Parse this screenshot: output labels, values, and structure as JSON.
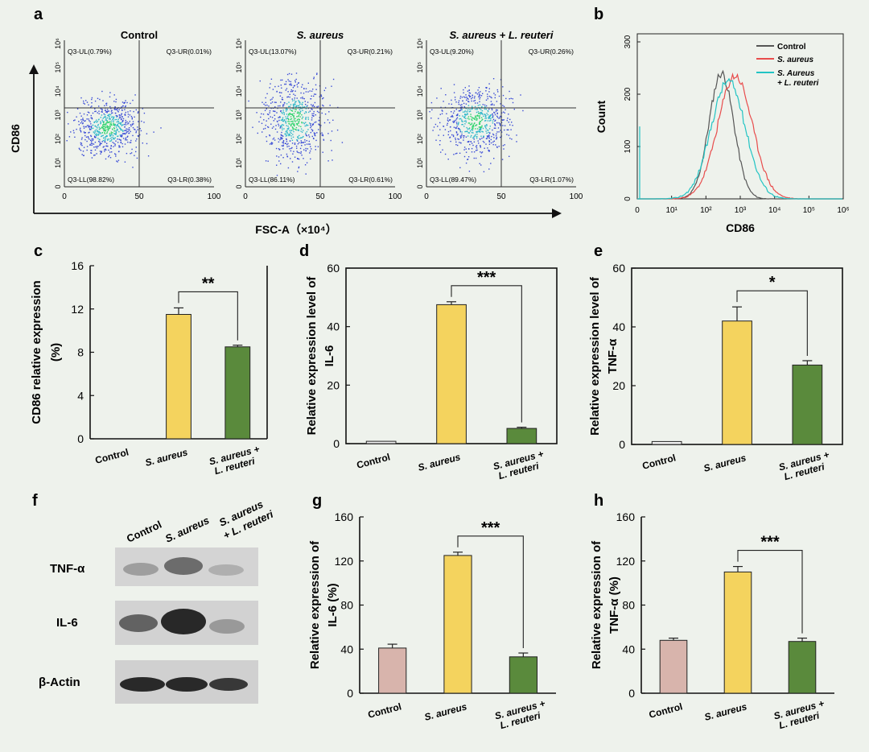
{
  "colors": {
    "background": "#eef2ec",
    "control_bar": "#d8b4ac",
    "aureus_bar": "#f4d35e",
    "reuteri_bar": "#5a8a3c",
    "hist_control": "#555555",
    "hist_aureus": "#e84c4c",
    "hist_reuteri": "#22c4c4",
    "dot_core": "#2bd36b",
    "dot_edge": "#3a4bd6"
  },
  "panel_labels": {
    "a": "a",
    "b": "b",
    "c": "c",
    "d": "d",
    "e": "e",
    "f": "f",
    "g": "g",
    "h": "h"
  },
  "flow": {
    "y_axis_label": "CD86",
    "x_axis_label": "FSC-A（×10⁴）",
    "y_ticks": [
      "10⁶",
      "10⁵",
      "10⁴",
      "10³",
      "10²",
      "10¹",
      "0"
    ],
    "x_ticks": [
      "0",
      "50",
      "100"
    ],
    "plots": [
      {
        "title": "Control",
        "ul": "Q3-UL(0.79%)",
        "ur": "Q3-UR(0.01%)",
        "ll": "Q3-LL(98.82%)",
        "lr": "Q3-LR(0.38%)"
      },
      {
        "title": "S. aureus",
        "ul": "Q3-UL(13.07%)",
        "ur": "Q3-UR(0.21%)",
        "ll": "Q3-LL(86.11%)",
        "lr": "Q3-LR(0.61%)"
      },
      {
        "title": "S. aureus + L. reuteri",
        "ul": "Q3-UL(9.20%)",
        "ur": "Q3-UR(0.26%)",
        "ll": "Q3-LL(89.47%)",
        "lr": "Q3-LR(1.07%)"
      }
    ]
  },
  "histogram": {
    "ylabel": "Count",
    "xlabel": "CD86",
    "y_ticks": [
      "0",
      "100",
      "200",
      "300"
    ],
    "x_ticks": [
      "0",
      "10¹",
      "10²",
      "10³",
      "10⁴",
      "10⁵",
      "10⁶"
    ],
    "legend": [
      "Control",
      "S. aureus",
      "S. Aureus",
      "+ L. reuteri"
    ]
  },
  "western": {
    "lanes": [
      "Control",
      "S. aureus",
      "S. aureus",
      "+ L. reuteri"
    ],
    "rows": [
      "TNF-α",
      "IL-6",
      "β-Actin"
    ]
  },
  "categories": [
    "Control",
    "S. aureus",
    "S. aureus +",
    "L. reuteri"
  ],
  "chart_data": [
    {
      "type": "bar",
      "panel": "c",
      "categories": [
        "Control",
        "S. aureus",
        "S. aureus + L. reuteri"
      ],
      "values": [
        0,
        11.5,
        8.5
      ],
      "errors": [
        0,
        0.6,
        0.15
      ],
      "ylabel": "CD86 relative expression",
      "ylabel2": "(%)",
      "ylim": [
        0,
        16
      ],
      "yticks": [
        0,
        4,
        8,
        12,
        16
      ],
      "significance": "**"
    },
    {
      "type": "bar",
      "panel": "d",
      "categories": [
        "Control",
        "S. aureus",
        "S. aureus + L. reuteri"
      ],
      "values": [
        0.8,
        47.5,
        5.2
      ],
      "errors": [
        0,
        1.0,
        0.4
      ],
      "ylabel": "Relative expression level of",
      "ylabel2": "IL-6",
      "ylim": [
        0,
        60
      ],
      "yticks": [
        0,
        20,
        40,
        60
      ],
      "significance": "***"
    },
    {
      "type": "bar",
      "panel": "e",
      "categories": [
        "Control",
        "S. aureus",
        "S. aureus + L. reuteri"
      ],
      "values": [
        1.0,
        42.0,
        27.0
      ],
      "errors": [
        0,
        4.8,
        1.5
      ],
      "ylabel": "Relative expression level of",
      "ylabel2": "TNF-α",
      "ylim": [
        0,
        60
      ],
      "yticks": [
        0,
        20,
        40,
        60
      ],
      "significance": "*"
    },
    {
      "type": "bar",
      "panel": "g",
      "categories": [
        "Control",
        "S. aureus",
        "S. aureus + L. reuteri"
      ],
      "values": [
        41,
        125,
        33
      ],
      "errors": [
        3.5,
        3.0,
        3.5
      ],
      "ylabel": "Relative expression of",
      "ylabel2": "IL-6 (%)",
      "ylim": [
        0,
        160
      ],
      "yticks": [
        0,
        40,
        80,
        120,
        160
      ],
      "significance": "***"
    },
    {
      "type": "bar",
      "panel": "h",
      "categories": [
        "Control",
        "S. aureus",
        "S. aureus + L. reuteri"
      ],
      "values": [
        48,
        110,
        47
      ],
      "errors": [
        2.0,
        5.0,
        3.0
      ],
      "ylabel": "Relative expression of",
      "ylabel2": "TNF-α (%)",
      "ylim": [
        0,
        160
      ],
      "yticks": [
        0,
        40,
        80,
        120,
        160
      ],
      "significance": "***"
    }
  ]
}
